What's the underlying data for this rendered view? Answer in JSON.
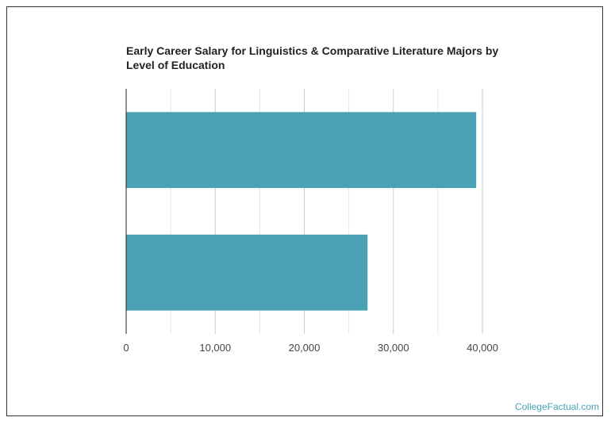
{
  "chart_data": {
    "type": "bar",
    "orientation": "horizontal",
    "title": "Early Career Salary for Linguistics & Comparative Literature Majors by Level of Education",
    "categories": [
      "",
      ""
    ],
    "values": [
      39300,
      27100
    ],
    "xlim": [
      0,
      40000
    ],
    "xticks": [
      0,
      10000,
      20000,
      30000,
      40000
    ],
    "xtick_labels": [
      "0",
      "10,000",
      "20,000",
      "30,000",
      "40,000"
    ],
    "xlabel": "",
    "ylabel": "",
    "grid": true,
    "bar_color": "#4aa1b3"
  },
  "watermark": "CollegeFactual.com"
}
